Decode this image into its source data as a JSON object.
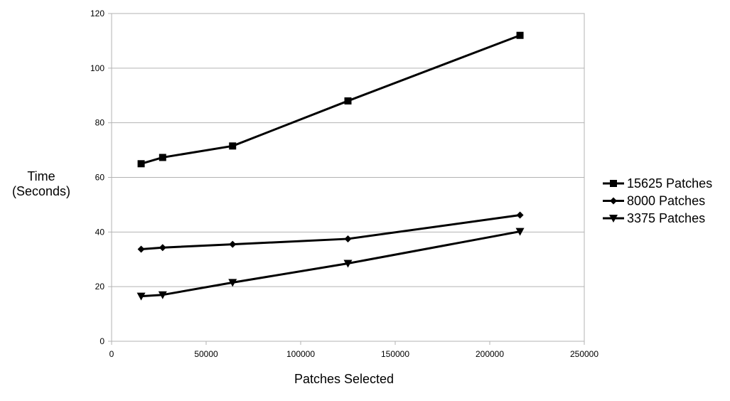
{
  "chart_data": {
    "type": "line",
    "title": "",
    "xlabel": "Patches Selected",
    "ylabel_lines": [
      "Time",
      "(Seconds)"
    ],
    "xlim": [
      0,
      250000
    ],
    "ylim": [
      0,
      120
    ],
    "x_ticks": [
      0,
      50000,
      100000,
      150000,
      200000,
      250000
    ],
    "y_ticks": [
      0,
      20,
      40,
      60,
      80,
      100,
      120
    ],
    "grid": "horizontal",
    "legend_position": "right",
    "series": [
      {
        "name": "15625 Patches",
        "marker": "square",
        "color": "#000000",
        "x": [
          15625,
          27000,
          64000,
          125000,
          216000
        ],
        "y": [
          65,
          67.3,
          71.5,
          88,
          112
        ]
      },
      {
        "name": "8000 Patches",
        "marker": "diamond",
        "color": "#000000",
        "x": [
          15625,
          27000,
          64000,
          125000,
          216000
        ],
        "y": [
          33.7,
          34.3,
          35.5,
          37.5,
          46.2
        ]
      },
      {
        "name": "3375 Patches",
        "marker": "triangle-down",
        "color": "#000000",
        "x": [
          15625,
          27000,
          64000,
          125000,
          216000
        ],
        "y": [
          16.5,
          17,
          21.5,
          28.5,
          40.2
        ]
      }
    ]
  }
}
